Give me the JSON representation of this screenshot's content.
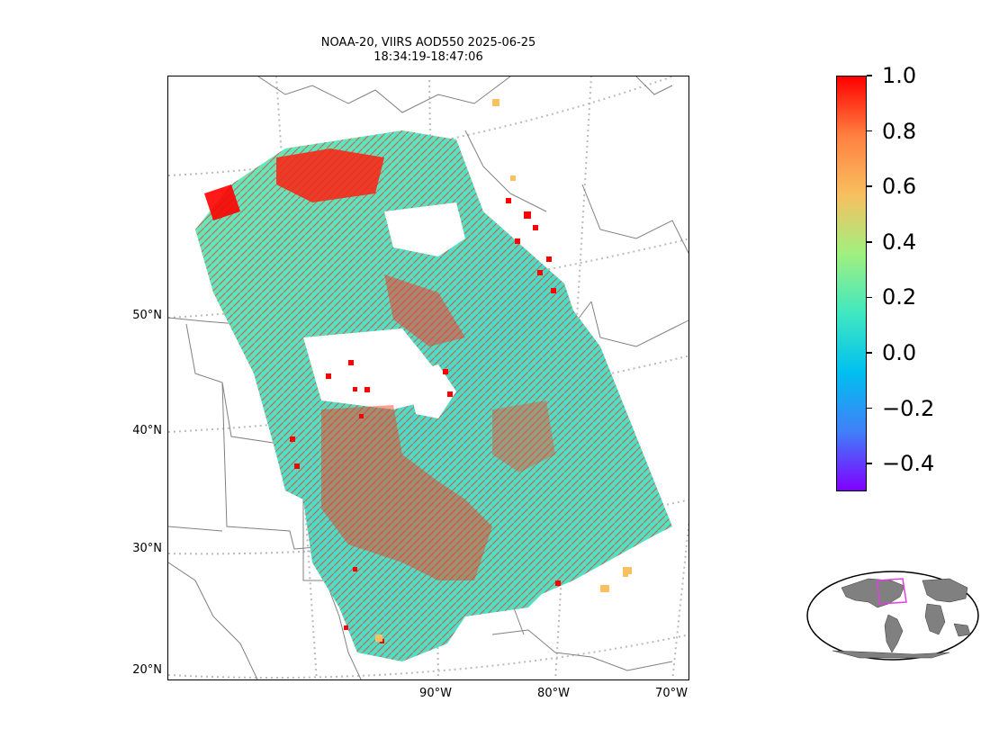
{
  "title": {
    "line1": "NOAA-20, VIIRS AOD550 2025-06-25",
    "line2": "18:34:19-18:47:06"
  },
  "map": {
    "projection": "lambert-conformal",
    "lat_labels": [
      "50°N",
      "40°N",
      "30°N",
      "20°N"
    ],
    "lon_labels": [
      "90°W",
      "80°W",
      "70°W"
    ],
    "gridlines": true,
    "coastline_color": "#808080",
    "state_border_color": "#808080",
    "gridline_color": "#bbbbbb"
  },
  "colorbar": {
    "colormap": "rainbow",
    "vmin": -0.5,
    "vmax": 1.0,
    "ticks": [
      1.0,
      0.8,
      0.6,
      0.4,
      0.2,
      0.0,
      -0.2,
      -0.4
    ],
    "tick_labels": [
      "1.0",
      "0.8",
      "0.6",
      "0.4",
      "0.2",
      "0.0",
      "−0.2",
      "−0.4"
    ],
    "colors": [
      "#ff0000",
      "#ff8040",
      "#f8c060",
      "#a0f080",
      "#40e8c0",
      "#00c0f0",
      "#4080f8",
      "#8000ff"
    ]
  },
  "locator_globe": {
    "land_color": "#808080",
    "extent_box_color": "#e040e0"
  }
}
